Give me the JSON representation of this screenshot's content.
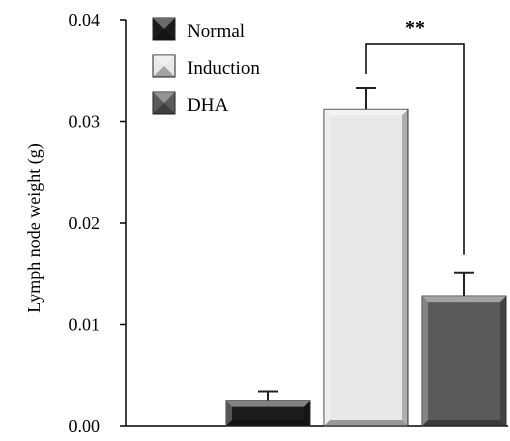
{
  "chart_data": {
    "type": "bar",
    "title": "",
    "xlabel": "",
    "ylabel": "Lymph node weight (g)",
    "ylim": [
      0,
      0.04
    ],
    "yticks": [
      "0.00",
      "0.01",
      "0.02",
      "0.03",
      "0.04"
    ],
    "ytick_values": [
      0,
      0.01,
      0.02,
      0.03,
      0.04
    ],
    "categories": [
      "Normal",
      "Induction",
      "DHA"
    ],
    "values": [
      0.0025,
      0.0312,
      0.0128
    ],
    "errors": [
      0.0009,
      0.0021,
      0.0023
    ],
    "colors": [
      "#1c1c1c",
      "#e8e8e8",
      "#5a5a5a"
    ],
    "legend": {
      "placement": "top-left",
      "entries": [
        "Normal",
        "Induction",
        "DHA"
      ]
    },
    "grid": false,
    "significance": {
      "label": "**",
      "between": [
        "Induction",
        "DHA"
      ]
    }
  }
}
